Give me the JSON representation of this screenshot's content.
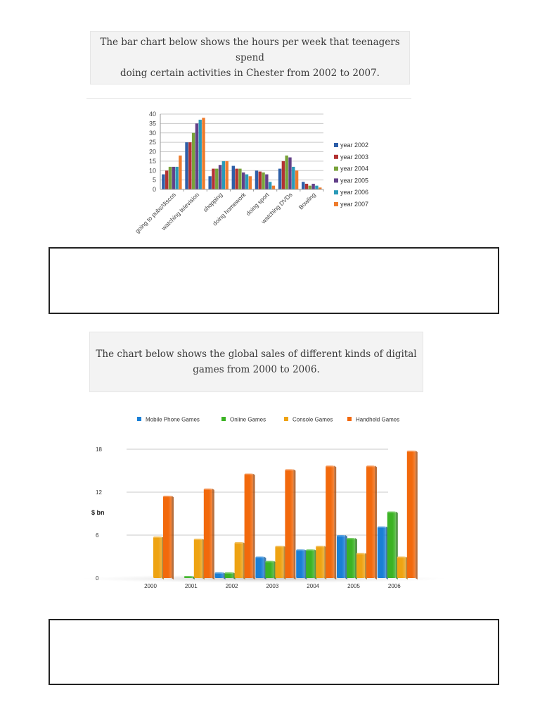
{
  "section1": {
    "prompt_lines": [
      "The bar chart below shows the hours per week that teenagers spend",
      "doing certain activities in Chester from 2002 to 2007."
    ],
    "answer_box": {
      "value": ""
    }
  },
  "section2": {
    "prompt_lines": [
      "The chart below shows the global sales of different kinds of digital",
      "games from 2000 to 2006."
    ],
    "answer_box": {
      "value": ""
    }
  },
  "chart_data": [
    {
      "type": "bar",
      "title": "",
      "xlabel": "",
      "ylabel": "",
      "ylim": [
        0,
        40
      ],
      "yticks": [
        0,
        5,
        10,
        15,
        20,
        25,
        30,
        35,
        40
      ],
      "grid": true,
      "legend_position": "right",
      "categories": [
        "going to pubs/discos",
        "watching television",
        "shopping",
        "doing homework",
        "doing sport",
        "watching DVDs",
        "Bowling"
      ],
      "series": [
        {
          "name": "year 2002",
          "color": "#2e5fa8",
          "values": [
            8,
            25,
            7,
            12.5,
            10,
            11,
            4
          ]
        },
        {
          "name": "year 2003",
          "color": "#b23232",
          "values": [
            10,
            25,
            11,
            11,
            9.5,
            15,
            3
          ]
        },
        {
          "name": "year 2004",
          "color": "#79a33b",
          "values": [
            12,
            30,
            11,
            11,
            9,
            18,
            2
          ]
        },
        {
          "name": "year 2005",
          "color": "#634089",
          "values": [
            12,
            35,
            13,
            9,
            8,
            17,
            3
          ]
        },
        {
          "name": "year 2006",
          "color": "#2a9ab8",
          "values": [
            12,
            37,
            15,
            8,
            4,
            12,
            2
          ]
        },
        {
          "name": "year 2007",
          "color": "#ee7b2c",
          "values": [
            18,
            38,
            15,
            7,
            2,
            10,
            1
          ]
        }
      ]
    },
    {
      "type": "bar",
      "title": "",
      "xlabel": "",
      "ylabel": "$ bn",
      "ylim": [
        0,
        18
      ],
      "yticks": [
        0,
        6,
        12,
        18
      ],
      "grid": true,
      "legend_position": "top",
      "categories": [
        "2000",
        "2001",
        "2002",
        "2003",
        "2004",
        "2005",
        "2006"
      ],
      "series": [
        {
          "name": "Mobile Phone Games",
          "color": "#1a7fd6",
          "values": [
            0,
            0,
            0.8,
            3.0,
            4.0,
            6.0,
            7.2
          ]
        },
        {
          "name": "Online Games",
          "color": "#3bb324",
          "values": [
            0,
            0.3,
            0.8,
            2.4,
            4.0,
            5.6,
            9.3
          ]
        },
        {
          "name": "Console Games",
          "color": "#eea312",
          "values": [
            5.8,
            5.5,
            5.0,
            4.5,
            4.5,
            3.5,
            3.0
          ]
        },
        {
          "name": "Handheld Games",
          "color": "#f2690c",
          "values": [
            11.5,
            12.5,
            14.6,
            15.2,
            15.7,
            15.7,
            17.8
          ]
        }
      ]
    }
  ]
}
